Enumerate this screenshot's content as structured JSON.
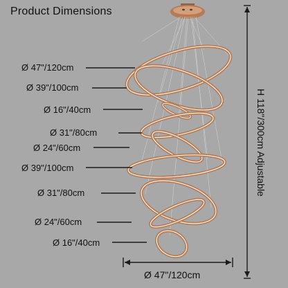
{
  "title": "Product Dimensions",
  "height_label": "H 118\"/300cm Adjustable",
  "width_label": "Ø 47\"/120cm",
  "ring_labels": [
    "Ø 47\"/120cm",
    "Ø 39\"/100cm",
    "Ø 16\"/40cm",
    "Ø 31\"/80cm",
    "Ø 24\"/60cm",
    "Ø 39\"/100cm",
    "Ø 31\"/80cm",
    "Ø 24\"/60cm",
    "Ø 16\"/40cm"
  ],
  "colors": {
    "background": "#a8a8a8",
    "ring_metal": "#b57a56",
    "ring_glow": "#fff3e2"
  }
}
